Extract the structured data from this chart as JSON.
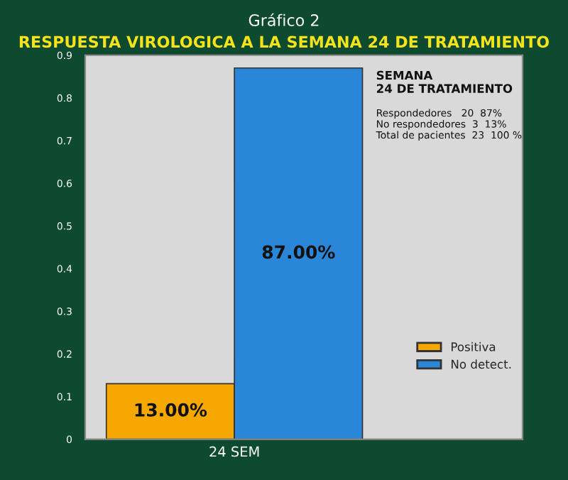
{
  "chart_data": {
    "type": "bar",
    "title": "Gráfico 2",
    "subtitle": "RESPUESTA VIROLOGICA A LA SEMANA 24 DE TRATAMIENTO",
    "categories": [
      "24 SEM"
    ],
    "series": [
      {
        "name": "Positiva",
        "color": "#f7a800",
        "values": [
          0.13
        ],
        "value_labels": [
          "13.00%"
        ]
      },
      {
        "name": "No detect.",
        "color": "#2a86d8",
        "values": [
          0.87
        ],
        "value_labels": [
          "87.00%"
        ]
      }
    ],
    "ylim": [
      0,
      0.9
    ],
    "yticks": [
      0,
      0.1,
      0.2,
      0.3,
      0.4,
      0.5,
      0.6,
      0.7,
      0.8,
      0.9
    ],
    "grid": false,
    "legend": "bottom right",
    "annotations": [
      "SEMANA\n24 DE TRATAMIENTO",
      "Respondedores   20  87%\nNo respondedores  3  13%\nTotal de pacientes  23  100 %"
    ]
  }
}
